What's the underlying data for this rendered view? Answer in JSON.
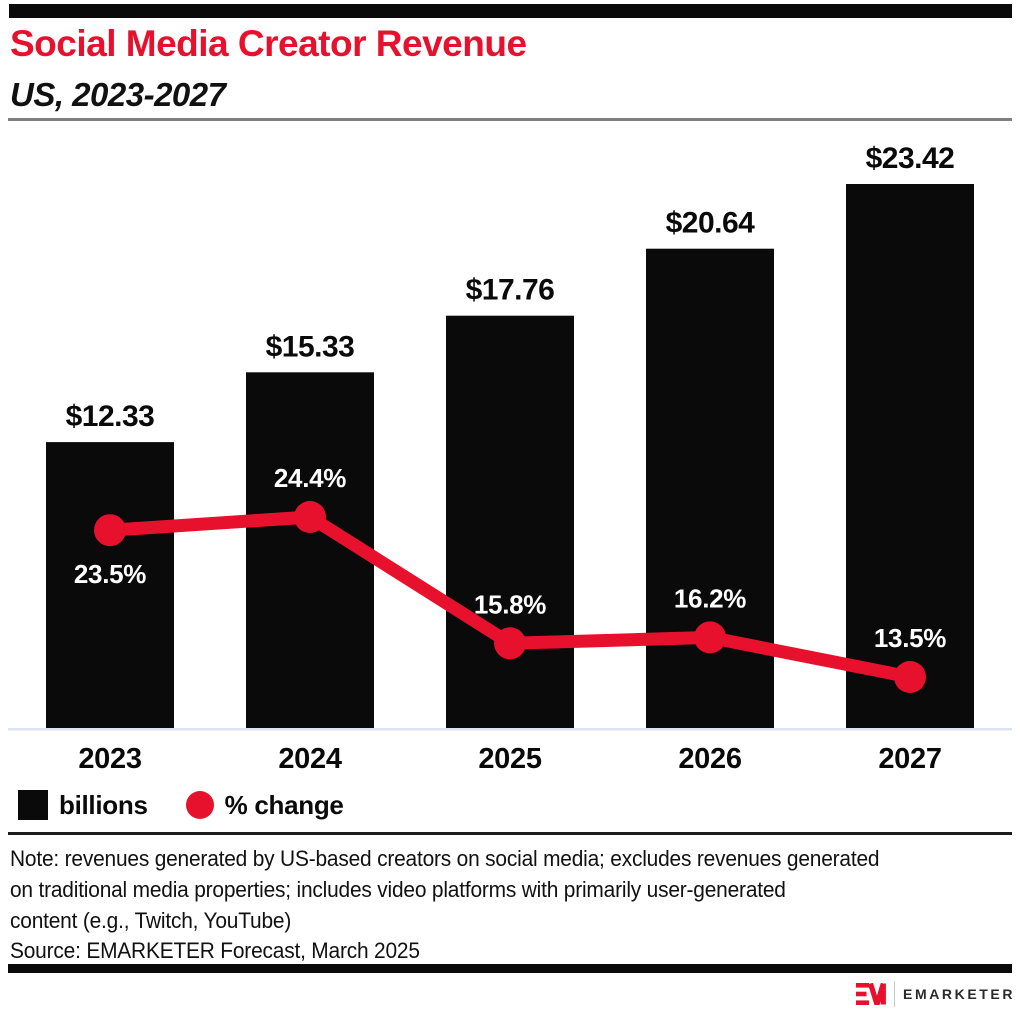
{
  "header": {
    "title": "Social Media Creator Revenue",
    "subtitle": "US, 2023-2027"
  },
  "chart_data": {
    "type": "bar",
    "subtype": "bar + line combo",
    "categories": [
      "2023",
      "2024",
      "2025",
      "2026",
      "2027"
    ],
    "series": [
      {
        "name": "billions",
        "type": "bar",
        "values": [
          12.33,
          15.33,
          17.76,
          20.64,
          23.42
        ],
        "value_labels": [
          "$12.33",
          "$15.33",
          "$17.76",
          "$20.64",
          "$23.42"
        ],
        "color": "#0a0a0a"
      },
      {
        "name": "% change",
        "type": "line",
        "values": [
          23.5,
          24.4,
          15.8,
          16.2,
          13.5
        ],
        "value_labels": [
          "23.5%",
          "24.4%",
          "15.8%",
          "16.2%",
          "13.5%"
        ],
        "label_positions": [
          "below",
          "above",
          "above",
          "above",
          "above"
        ],
        "color": "#e8112d"
      }
    ],
    "title": "Social Media Creator Revenue",
    "xlabel": "",
    "ylabel": "",
    "gridlines": false,
    "y_axis_shown": false,
    "legend_position": "bottom-left",
    "legend": [
      "billions",
      "% change"
    ]
  },
  "legend": {
    "bar_label": "billions",
    "line_label": "% change"
  },
  "note": "Note: revenues generated by US-based creators on social media; excludes revenues generated\non traditional media properties; includes video platforms with primarily user-generated\ncontent (e.g., Twitch, YouTube)",
  "source": "Source: EMARKETER Forecast, March 2025",
  "footer": {
    "brand": "EMARKETER"
  },
  "colors": {
    "accent_red": "#e8112d",
    "bar_black": "#0a0a0a",
    "baseline": "#dde3f2",
    "rule_gray": "#7f7f7f",
    "separator_dark": "#1b1b1b"
  }
}
